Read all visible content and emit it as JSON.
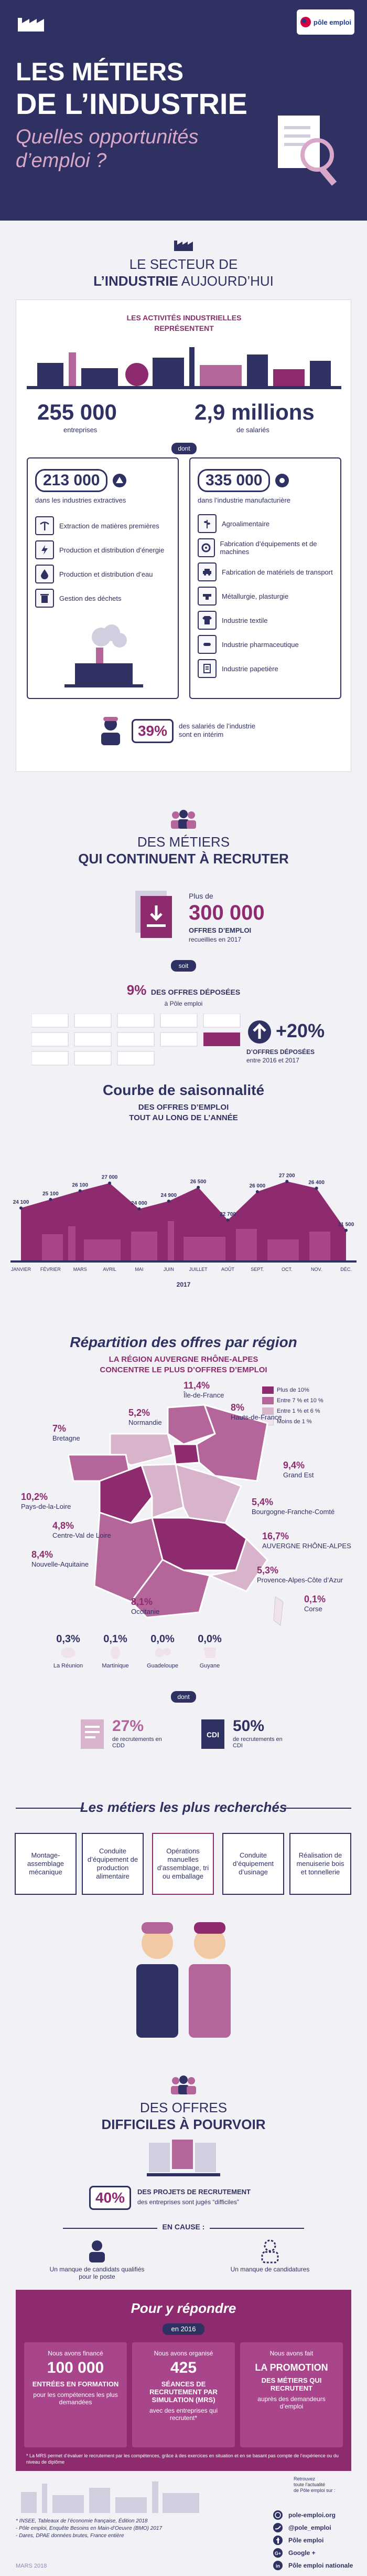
{
  "header": {
    "title_line1": "LES MÉTIERS",
    "title_line2": "DE L’INDUSTRIE",
    "subtitle_line1": "Quelles opportunités",
    "subtitle_line2": "d’emploi ?",
    "brand": "pôle emploi"
  },
  "sector": {
    "title_line1": "LE SECTEUR DE",
    "title_line2_bold": "L’INDUSTRIE",
    "title_line2_rest": " AUJOURD’HUI",
    "activities_line1": "LES ACTIVITÉS INDUSTRIELLES",
    "activities_line2": "REPRÉSENTENT",
    "companies_value": "255 000",
    "companies_label": "entreprises",
    "employees_value": "2,9 millions",
    "employees_label": "de salariés",
    "dont": "dont",
    "extractive_value": "213 000",
    "extractive_label": "dans les industries extractives",
    "manufacturing_value": "335 000",
    "manufacturing_label": "dans l’industrie manufacturière",
    "extractive_items": [
      "Extraction de matières premières",
      "Production et distribution d’énergie",
      "Production et distribution d’eau",
      "Gestion des déchets"
    ],
    "manufacturing_items": [
      "Agroalimentaire",
      "Fabrication d’équipements et de machines",
      "Fabrication de matériels de transport",
      "Métallurgie, plasturgie",
      "Industrie textile",
      "Industrie pharmaceutique",
      "Industrie papetière"
    ],
    "interim_value": "39%",
    "interim_label": "des salariés de l’industrie sont en intérim"
  },
  "recruit": {
    "title_line1": "DES MÉTIERS",
    "title_line2": "QUI CONTINUENT À RECRUTER",
    "offers_prefix": "Plus de",
    "offers_value": "300 000",
    "offers_label_line1": "OFFRES D’EMPLOI",
    "offers_label_line2": "recueillies en 2017",
    "soit": "soit",
    "share_value": "9%",
    "share_label_line1": "DES OFFRES DÉPOSÉES",
    "share_label_line2": "à Pôle emploi",
    "growth_value": "+20%",
    "growth_label_line1": "D’OFFRES DÉPOSÉES",
    "growth_label_line2": "entre 2016 et 2017"
  },
  "chart_data": {
    "type": "line",
    "title": "Courbe de saisonnalité",
    "subtitle_line1": "DES OFFRES D’EMPLOI",
    "subtitle_line2": "TOUT AU LONG DE L’ANNÉE",
    "categories": [
      "JANVIER",
      "FÉVRIER",
      "MARS",
      "AVRIL",
      "MAI",
      "JUIN",
      "JUILLET",
      "AOÛT",
      "SEPT.",
      "OCT.",
      "NOV.",
      "DÉC."
    ],
    "values": [
      24100,
      25100,
      26100,
      27000,
      24000,
      24900,
      26500,
      22700,
      26000,
      27200,
      26400,
      21500
    ],
    "data_labels": [
      "24 100",
      "25 100",
      "26 100",
      "27 000",
      "24 000",
      "24 900",
      "26 500",
      "22 700",
      "26 000",
      "27 200",
      "26 400",
      "21 500"
    ],
    "year": "2017",
    "ylim": [
      18000,
      29000
    ]
  },
  "regions": {
    "title": "Répartition des offres par région",
    "subtitle_line1": "LA RÉGION AUVERGNE RHÔNE-ALPES",
    "subtitle_line2": "CONCENTRE LE PLUS D’OFFRES D’EMPLOI",
    "legend": [
      "Plus de 10%",
      "Entre 7 % et 10 %",
      "Entre 1 % et 6 %",
      "Moins de 1 %"
    ],
    "legend_colors": [
      "#8e2a6e",
      "#b4669b",
      "#d7b3cc",
      "#efe2ea"
    ],
    "list": [
      {
        "name": "Île-de-France",
        "value": "11,4%"
      },
      {
        "name": "Normandie",
        "value": "5,2%"
      },
      {
        "name": "Hauts-de-France",
        "value": "8%"
      },
      {
        "name": "Bretagne",
        "value": "7%"
      },
      {
        "name": "Grand Est",
        "value": "9,4%"
      },
      {
        "name": "Pays-de-la-Loire",
        "value": "10,2%"
      },
      {
        "name": "Bourgogne-Franche-Comté",
        "value": "5,4%"
      },
      {
        "name": "Centre-Val de Loire",
        "value": "4,8%"
      },
      {
        "name": "AUVERGNE RHÔNE-ALPES",
        "value": "16,7%"
      },
      {
        "name": "Nouvelle-Aquitaine",
        "value": "8,4%"
      },
      {
        "name": "Provence-Alpes-Côte d’Azur",
        "value": "5,3%"
      },
      {
        "name": "Occitanie",
        "value": "8,1%"
      },
      {
        "name": "Corse",
        "value": "0,1%"
      }
    ],
    "dom": [
      {
        "name": "La Réunion",
        "value": "0,3%"
      },
      {
        "name": "Martinique",
        "value": "0,1%"
      },
      {
        "name": "Guadeloupe",
        "value": "0,0%"
      },
      {
        "name": "Guyane",
        "value": "0,0%"
      }
    ],
    "dont": "dont",
    "salaried_value": "27%",
    "salaried_label": "de recrutements en CDD",
    "cdi_value": "50%",
    "cdi_label": "de recrutements en CDI"
  },
  "metiers": {
    "title": "Les métiers les plus recherchés",
    "items": [
      "Montage-assemblage mécanique",
      "Conduite d’équipement de production alimentaire",
      "Opérations manuelles d’assemblage, tri ou emballage",
      "Conduite d’équipement d’usinage",
      "Réalisation de menuiserie bois et tonnellerie"
    ]
  },
  "difficult": {
    "title_line1": "DES OFFRES",
    "title_line2": "DIFFICILES À POURVOIR",
    "pct_value": "40%",
    "pct_label_line1": "DES PROJETS DE RECRUTEMENT",
    "pct_label_line2": "des entreprises sont jugés “difficiles”",
    "cause_title": "EN CAUSE :",
    "cause_left": "Un manque de candidats qualifiés pour le poste",
    "cause_right": "Un manque de candidatures"
  },
  "response": {
    "title": "Pour y répondre",
    "year": "en 2016",
    "cols": [
      {
        "pre": "Nous avons financé",
        "value": "100 000",
        "head": "ENTRÉES EN FORMATION",
        "desc": "pour les compétences les plus demandées"
      },
      {
        "pre": "Nous avons organisé",
        "value": "425",
        "head": "SÉANCES DE RECRUTEMENT PAR SIMULATION (MRS)",
        "desc": "avec des entreprises qui recrutent*"
      },
      {
        "pre": "Nous avons fait",
        "value": "LA PROMOTION",
        "head": "DES MÉTIERS QUI RECRUTENT",
        "desc": "auprès des demandeurs d’emploi"
      }
    ],
    "footnote": "* La MRS permet d’évaluer le recrutement par les compétences, grâce à des exercices en situation et en se basant pas compte de l’expérience ou du niveau de diplôme"
  },
  "footer": {
    "sources": [
      "* INSEE, Tableaux de l’économie française, Édition 2018",
      "- Pôle emploi, Enquête Besoins en Main-d’Oeuvre (BMO) 2017",
      "- Dares, DPAE données brutes, France entière"
    ],
    "date": "MARS 2018",
    "contact_label_line1": "Retrouvez",
    "contact_label_line2": "toute l’actualité",
    "contact_label_line3": "de Pôle emploi sur :",
    "links": [
      "pole-emploi.org",
      "@pole_emploi",
      "Pôle emploi",
      "Google +",
      "Pôle emploi nationale"
    ]
  }
}
